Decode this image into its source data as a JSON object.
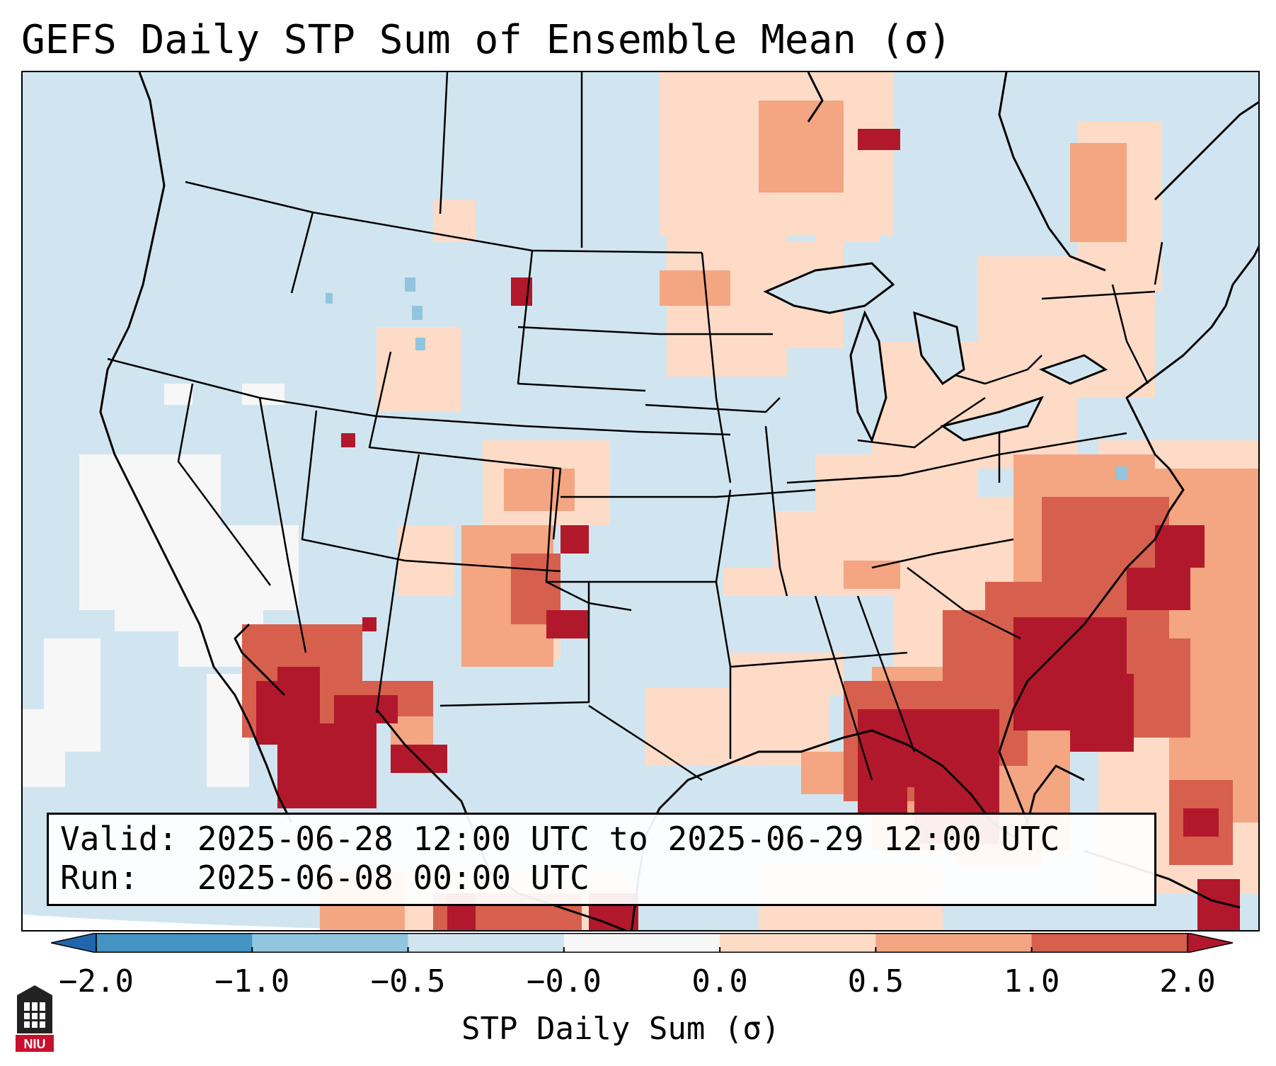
{
  "title": "GEFS Daily STP Sum of Ensemble Mean (σ)",
  "info": {
    "valid_label": "Valid:",
    "valid_value": "2025-06-28 12:00 UTC to 2025-06-29 12:00 UTC",
    "run_label": "Run:",
    "run_value": "2025-06-08 00:00 UTC"
  },
  "colorbar": {
    "label": "STP Daily Sum (σ)",
    "ticks": [
      "−2.0",
      "−1.0",
      "−0.5",
      "−0.0",
      "0.0",
      "0.5",
      "1.0",
      "2.0"
    ],
    "bins": [
      {
        "range": "< -2.0",
        "color": "#2166ac"
      },
      {
        "range": "-2.0 to -1.0",
        "color": "#4393c3"
      },
      {
        "range": "-1.0 to -0.5",
        "color": "#92c5de"
      },
      {
        "range": "-0.5 to -0.0",
        "color": "#d1e5f0"
      },
      {
        "range": "-0.0 to 0.0",
        "color": "#f7f7f7"
      },
      {
        "range": "0.0 to 0.5",
        "color": "#fddbc7"
      },
      {
        "range": "0.5 to 1.0",
        "color": "#f4a582"
      },
      {
        "range": "1.0 to 2.0",
        "color": "#d6604d"
      },
      {
        "range": "> 2.0",
        "color": "#b2182b"
      }
    ]
  },
  "logo_text": "NIU",
  "map": {
    "background_color": "#d1e5f0",
    "regions": [
      {
        "name": "west-coast-neutral",
        "category": "neutral"
      },
      {
        "name": "northern-plains-light",
        "category": "0.0 to 0.5"
      },
      {
        "name": "ohio-valley-light",
        "category": "0.0 to 0.5"
      },
      {
        "name": "northeast-light",
        "category": "0.0 to 0.5"
      },
      {
        "name": "gulf-of-mexico-max",
        "category": "> 2.0"
      },
      {
        "name": "atlantic-offshore-max",
        "category": "> 2.0"
      },
      {
        "name": "northwest-mexico-max",
        "category": "> 2.0"
      },
      {
        "name": "bahamas-high",
        "category": "1.0 to 2.0"
      }
    ]
  }
}
